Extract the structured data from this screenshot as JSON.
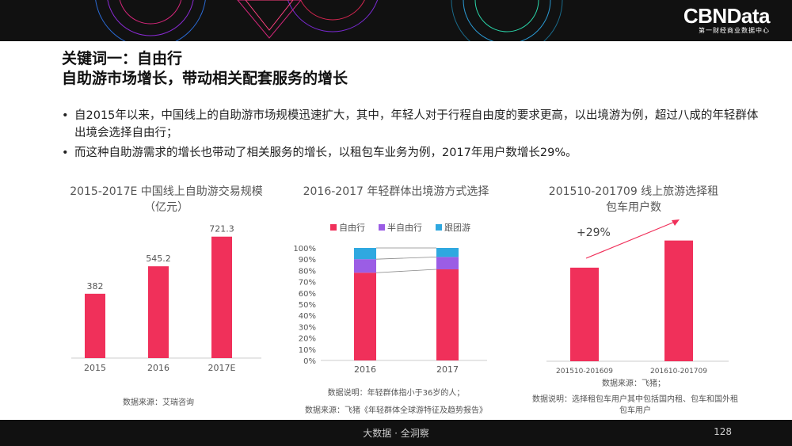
{
  "brand": {
    "logo": "CBNData",
    "tagline": "第一财经商业数据中心"
  },
  "title": {
    "line1": "关键词一：自由行",
    "line2": "自助游市场增长，带动相关配套服务的增长"
  },
  "bullets": [
    "自2015年以来，中国线上的自助游市场规模迅速扩大，其中，年轻人对于行程自由度的要求更高，以出境游为例，超过八成的年轻群体出境会选择自由行；",
    "而这种自助游需求的增长也带动了相关服务的增长，以租包车业务为例，2017年用户数增长29%。"
  ],
  "colors": {
    "primary": "#f0305a",
    "purple": "#9b5de5",
    "blue": "#2fa8e0",
    "dark": "#111111"
  },
  "chart_data": [
    {
      "type": "bar",
      "title": "2015-2017E 中国线上自助游交易规模（亿元）",
      "categories": [
        "2015",
        "2016",
        "2017E"
      ],
      "values": [
        382,
        545.2,
        721.3
      ],
      "labels": [
        "382",
        "545.2",
        "721.3"
      ],
      "ylim": [
        0,
        800
      ],
      "grid": false,
      "note": "数据来源：艾瑞咨询"
    },
    {
      "type": "bar",
      "stacked": true,
      "title": "2016-2017 年轻群体出境游方式选择",
      "categories": [
        "2016",
        "2017"
      ],
      "series": [
        {
          "name": "自由行",
          "values": [
            78,
            81
          ]
        },
        {
          "name": "半自由行",
          "values": [
            12,
            11
          ]
        },
        {
          "name": "跟团游",
          "values": [
            10,
            8
          ]
        }
      ],
      "ylim": [
        0,
        100
      ],
      "yticks": [
        "0%",
        "10%",
        "20%",
        "30%",
        "40%",
        "50%",
        "60%",
        "70%",
        "80%",
        "90%",
        "100%"
      ],
      "legend": "top",
      "grid": false,
      "notes": [
        "数据说明：年轻群体指小于36岁的人；",
        "数据来源：飞猪《年轻群体全球游特征及趋势报告》"
      ]
    },
    {
      "type": "bar",
      "title": "201510-201709 线上旅游选择租包车用户数",
      "categories": [
        "201510-201609",
        "201610-201709"
      ],
      "values": [
        100,
        129
      ],
      "annotation": "+29%",
      "grid": false,
      "notes": [
        "数据来源：飞猪；",
        "数据说明：选择租包车用户其中包括国内租、包车和国外租包车用户"
      ]
    }
  ],
  "footer": {
    "center": "大数据 · 全洞察",
    "page": "128"
  }
}
